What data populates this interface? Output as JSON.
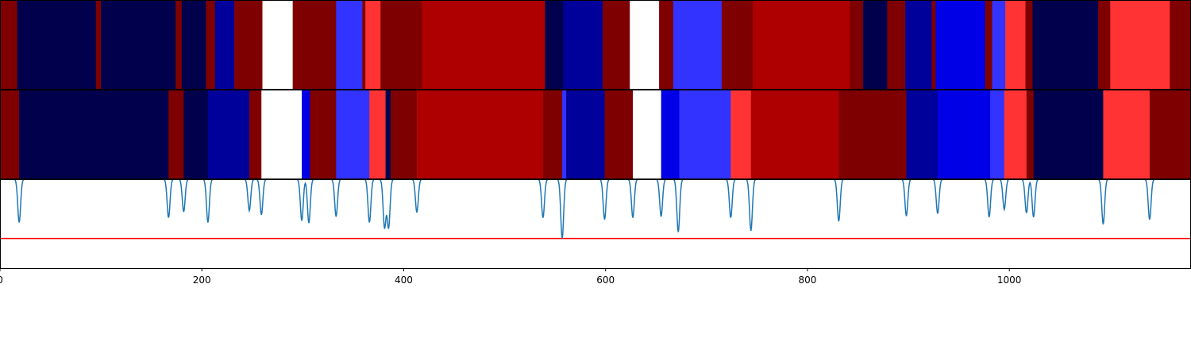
{
  "colors": {
    "seg_white": "#ffffff",
    "seg_navy": "#00004c",
    "seg_darkblue": "#00009a",
    "seg_blue": "#0000e6",
    "seg_lightblue": "#3333ff",
    "seg_maroon": "#7f0000",
    "seg_darkred": "#af0000",
    "seg_red": "#ff3333",
    "line": "#1f77b4",
    "threshold": "#ff0000",
    "frame": "#000000"
  },
  "chart_data": {
    "type": "segmented-bars-and-line",
    "x_range": [
      0,
      1180
    ],
    "x_ticks": [
      "0",
      "200",
      "400",
      "600",
      "800",
      "1000"
    ],
    "x_tick_values": [
      0,
      200,
      400,
      600,
      800,
      1000
    ],
    "rows": [
      {
        "segments": [
          {
            "start": 0,
            "end": 17,
            "color": "seg_maroon"
          },
          {
            "start": 17,
            "end": 95,
            "color": "seg_navy"
          },
          {
            "start": 95,
            "end": 100,
            "color": "seg_maroon"
          },
          {
            "start": 100,
            "end": 174,
            "color": "seg_navy"
          },
          {
            "start": 174,
            "end": 180,
            "color": "seg_maroon"
          },
          {
            "start": 180,
            "end": 204,
            "color": "seg_navy"
          },
          {
            "start": 204,
            "end": 213,
            "color": "seg_maroon"
          },
          {
            "start": 213,
            "end": 232,
            "color": "seg_darkblue"
          },
          {
            "start": 232,
            "end": 260,
            "color": "seg_maroon"
          },
          {
            "start": 260,
            "end": 290,
            "color": "seg_white"
          },
          {
            "start": 290,
            "end": 333,
            "color": "seg_maroon"
          },
          {
            "start": 333,
            "end": 359,
            "color": "seg_lightblue"
          },
          {
            "start": 359,
            "end": 362,
            "color": "seg_maroon"
          },
          {
            "start": 362,
            "end": 377,
            "color": "seg_red"
          },
          {
            "start": 377,
            "end": 418,
            "color": "seg_maroon"
          },
          {
            "start": 418,
            "end": 540,
            "color": "seg_darkred"
          },
          {
            "start": 540,
            "end": 558,
            "color": "seg_navy"
          },
          {
            "start": 558,
            "end": 597,
            "color": "seg_darkblue"
          },
          {
            "start": 597,
            "end": 624,
            "color": "seg_maroon"
          },
          {
            "start": 624,
            "end": 653,
            "color": "seg_white"
          },
          {
            "start": 653,
            "end": 667,
            "color": "seg_maroon"
          },
          {
            "start": 667,
            "end": 715,
            "color": "seg_lightblue"
          },
          {
            "start": 715,
            "end": 746,
            "color": "seg_maroon"
          },
          {
            "start": 746,
            "end": 842,
            "color": "seg_darkred"
          },
          {
            "start": 842,
            "end": 855,
            "color": "seg_maroon"
          },
          {
            "start": 855,
            "end": 879,
            "color": "seg_navy"
          },
          {
            "start": 879,
            "end": 897,
            "color": "seg_maroon"
          },
          {
            "start": 897,
            "end": 923,
            "color": "seg_darkblue"
          },
          {
            "start": 923,
            "end": 927,
            "color": "seg_maroon"
          },
          {
            "start": 927,
            "end": 976,
            "color": "seg_blue"
          },
          {
            "start": 976,
            "end": 983,
            "color": "seg_maroon"
          },
          {
            "start": 983,
            "end": 996,
            "color": "seg_lightblue"
          },
          {
            "start": 996,
            "end": 1016,
            "color": "seg_red"
          },
          {
            "start": 1016,
            "end": 1023,
            "color": "seg_maroon"
          },
          {
            "start": 1023,
            "end": 1088,
            "color": "seg_navy"
          },
          {
            "start": 1088,
            "end": 1100,
            "color": "seg_maroon"
          },
          {
            "start": 1100,
            "end": 1159,
            "color": "seg_red"
          },
          {
            "start": 1159,
            "end": 1180,
            "color": "seg_maroon"
          }
        ]
      },
      {
        "segments": [
          {
            "start": 0,
            "end": 19,
            "color": "seg_maroon"
          },
          {
            "start": 19,
            "end": 167,
            "color": "seg_navy"
          },
          {
            "start": 167,
            "end": 182,
            "color": "seg_maroon"
          },
          {
            "start": 182,
            "end": 206,
            "color": "seg_navy"
          },
          {
            "start": 206,
            "end": 247,
            "color": "seg_darkblue"
          },
          {
            "start": 247,
            "end": 259,
            "color": "seg_maroon"
          },
          {
            "start": 259,
            "end": 299,
            "color": "seg_white"
          },
          {
            "start": 299,
            "end": 307,
            "color": "seg_blue"
          },
          {
            "start": 307,
            "end": 333,
            "color": "seg_maroon"
          },
          {
            "start": 333,
            "end": 366,
            "color": "seg_lightblue"
          },
          {
            "start": 366,
            "end": 382,
            "color": "seg_red"
          },
          {
            "start": 382,
            "end": 387,
            "color": "seg_navy"
          },
          {
            "start": 387,
            "end": 413,
            "color": "seg_maroon"
          },
          {
            "start": 413,
            "end": 538,
            "color": "seg_darkred"
          },
          {
            "start": 538,
            "end": 557,
            "color": "seg_maroon"
          },
          {
            "start": 557,
            "end": 561,
            "color": "seg_lightblue"
          },
          {
            "start": 561,
            "end": 599,
            "color": "seg_darkblue"
          },
          {
            "start": 599,
            "end": 627,
            "color": "seg_maroon"
          },
          {
            "start": 627,
            "end": 655,
            "color": "seg_white"
          },
          {
            "start": 655,
            "end": 673,
            "color": "seg_blue"
          },
          {
            "start": 673,
            "end": 724,
            "color": "seg_lightblue"
          },
          {
            "start": 724,
            "end": 744,
            "color": "seg_red"
          },
          {
            "start": 744,
            "end": 831,
            "color": "seg_darkred"
          },
          {
            "start": 831,
            "end": 898,
            "color": "seg_maroon"
          },
          {
            "start": 898,
            "end": 929,
            "color": "seg_darkblue"
          },
          {
            "start": 929,
            "end": 981,
            "color": "seg_blue"
          },
          {
            "start": 981,
            "end": 995,
            "color": "seg_lightblue"
          },
          {
            "start": 995,
            "end": 1017,
            "color": "seg_red"
          },
          {
            "start": 1017,
            "end": 1024,
            "color": "seg_maroon"
          },
          {
            "start": 1024,
            "end": 1093,
            "color": "seg_navy"
          },
          {
            "start": 1093,
            "end": 1139,
            "color": "seg_red"
          },
          {
            "start": 1139,
            "end": 1180,
            "color": "seg_maroon"
          }
        ]
      }
    ],
    "line_series": {
      "baseline": 1.0,
      "threshold": 0.0,
      "ylim": [
        -0.5,
        1.0
      ],
      "dips": [
        {
          "x": 19,
          "depth": 0.73
        },
        {
          "x": 167,
          "depth": 0.65
        },
        {
          "x": 182,
          "depth": 0.55
        },
        {
          "x": 206,
          "depth": 0.73
        },
        {
          "x": 247,
          "depth": 0.53
        },
        {
          "x": 259,
          "depth": 0.6
        },
        {
          "x": 299,
          "depth": 0.7
        },
        {
          "x": 306,
          "depth": 0.74
        },
        {
          "x": 333,
          "depth": 0.63
        },
        {
          "x": 366,
          "depth": 0.73
        },
        {
          "x": 381,
          "depth": 0.82
        },
        {
          "x": 385,
          "depth": 0.82
        },
        {
          "x": 413,
          "depth": 0.56
        },
        {
          "x": 538,
          "depth": 0.65
        },
        {
          "x": 557,
          "depth": 1.0
        },
        {
          "x": 599,
          "depth": 0.68
        },
        {
          "x": 627,
          "depth": 0.65
        },
        {
          "x": 655,
          "depth": 0.63
        },
        {
          "x": 672,
          "depth": 0.89
        },
        {
          "x": 724,
          "depth": 0.65
        },
        {
          "x": 744,
          "depth": 0.87
        },
        {
          "x": 831,
          "depth": 0.71
        },
        {
          "x": 898,
          "depth": 0.62
        },
        {
          "x": 929,
          "depth": 0.58
        },
        {
          "x": 980,
          "depth": 0.64
        },
        {
          "x": 995,
          "depth": 0.51
        },
        {
          "x": 1017,
          "depth": 0.57
        },
        {
          "x": 1024,
          "depth": 0.64
        },
        {
          "x": 1093,
          "depth": 0.76
        },
        {
          "x": 1139,
          "depth": 0.68
        }
      ]
    }
  }
}
